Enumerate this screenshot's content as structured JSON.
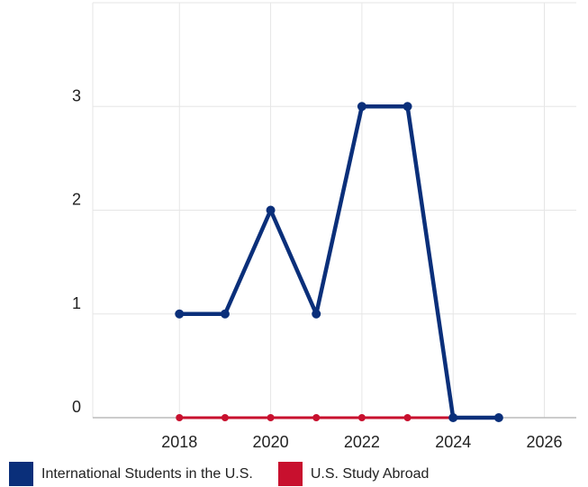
{
  "chart_data": {
    "type": "line",
    "x_ticks": [
      "2018",
      "2020",
      "2022",
      "2024",
      "2026"
    ],
    "y_ticks": [
      "0",
      "1",
      "2",
      "3",
      "4"
    ],
    "xlim": [
      2016.1,
      2026.7
    ],
    "ylim": [
      0,
      4
    ],
    "grid": true,
    "legend_placement": "bottom",
    "series": [
      {
        "name": "International Students in the U.S.",
        "color": "#0a2f7a",
        "x": [
          2018,
          2019,
          2020,
          2021,
          2022,
          2023,
          2024,
          2025
        ],
        "values": [
          1,
          1,
          2,
          1,
          3,
          3,
          0,
          0
        ]
      },
      {
        "name": "U.S. Study Abroad",
        "color": "#c8102e",
        "x": [
          2018,
          2019,
          2020,
          2021,
          2022,
          2023,
          2024
        ],
        "values": [
          0,
          0,
          0,
          0,
          0,
          0,
          0
        ]
      }
    ]
  }
}
